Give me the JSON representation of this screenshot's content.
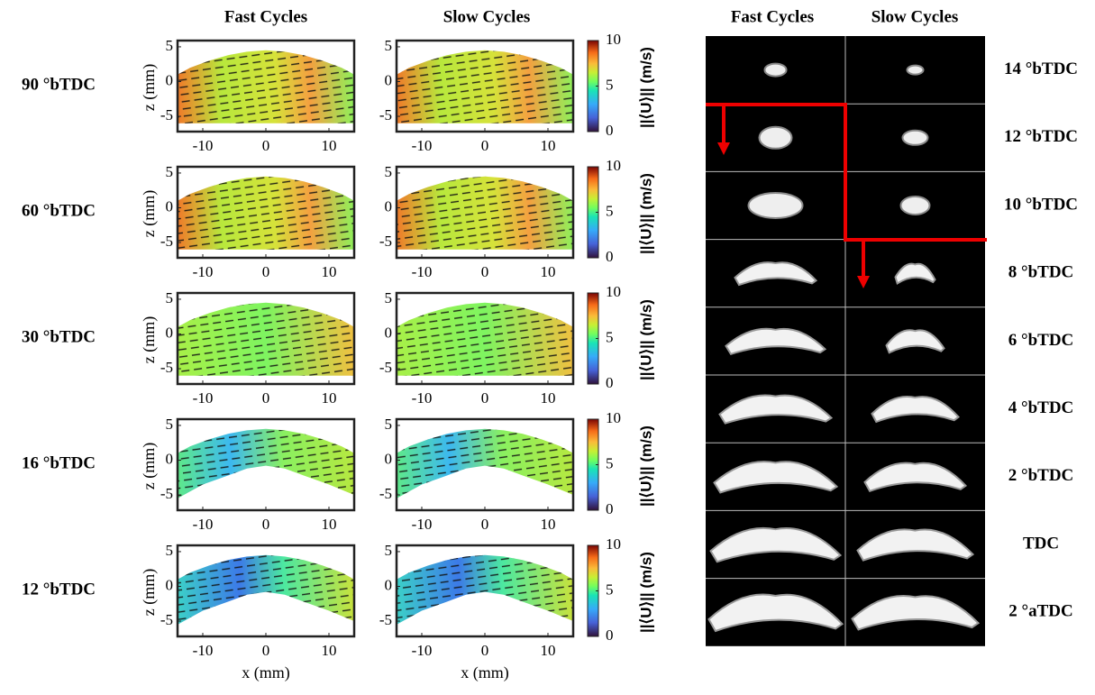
{
  "left_panel": {
    "column_titles": [
      "Fast Cycles",
      "Slow Cycles"
    ],
    "row_labels": [
      "90 °bTDC",
      "60 °bTDC",
      "30 °bTDC",
      "16 °bTDC",
      "12 °bTDC"
    ],
    "xlabel": "x (mm)",
    "ylabel": "z (mm)",
    "xlim": [
      -14,
      14
    ],
    "xticks": [
      -10,
      0,
      10
    ],
    "ylim": [
      -7.2,
      5.9
    ],
    "yticks": [
      5,
      0,
      -5
    ],
    "colorbar": {
      "label": "||⟨U⟩|| (m/s)",
      "lim": [
        0,
        10
      ],
      "ticks": [
        10,
        5,
        0
      ]
    }
  },
  "right_panel": {
    "column_titles": [
      "Fast Cycles",
      "Slow Cycles"
    ],
    "row_labels": [
      "14 °bTDC",
      "12 °bTDC",
      "10 °bTDC",
      "8 °bTDC",
      "6 °bTDC",
      "4 °bTDC",
      "2 °bTDC",
      "TDC",
      "2 °aTDC"
    ]
  }
}
